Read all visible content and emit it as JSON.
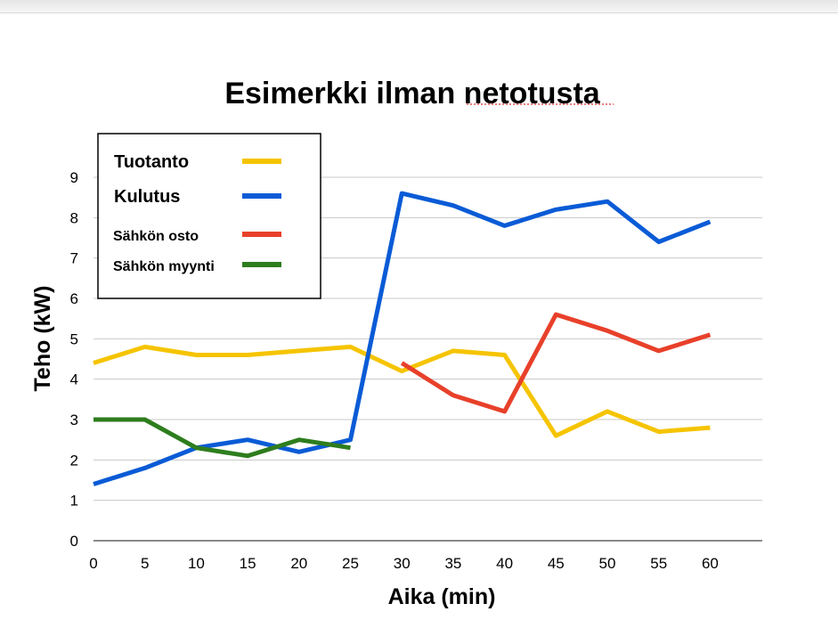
{
  "chart_data": {
    "type": "line",
    "title": "Esimerkki ilman netotusta",
    "xlabel": "Aika (min)",
    "ylabel": "Teho (kW)",
    "x": [
      0,
      5,
      10,
      15,
      20,
      25,
      30,
      35,
      40,
      45,
      50,
      55,
      60
    ],
    "xlim": [
      0,
      65
    ],
    "ylim": [
      0,
      9
    ],
    "xticks": [
      "0",
      "5",
      "10",
      "15",
      "20",
      "25",
      "30",
      "35",
      "40",
      "45",
      "50",
      "55",
      "60"
    ],
    "yticks": [
      "0",
      "1",
      "2",
      "3",
      "4",
      "5",
      "6",
      "7",
      "8",
      "9"
    ],
    "grid": true,
    "legend_position": "top-left",
    "series": [
      {
        "name": "Tuotanto",
        "color": "#f5c400",
        "points": [
          [
            0,
            4.4
          ],
          [
            5,
            4.8
          ],
          [
            10,
            4.6
          ],
          [
            15,
            4.6
          ],
          [
            20,
            4.7
          ],
          [
            25,
            4.8
          ],
          [
            30,
            4.2
          ],
          [
            35,
            4.7
          ],
          [
            40,
            4.6
          ],
          [
            45,
            2.6
          ],
          [
            50,
            3.2
          ],
          [
            55,
            2.7
          ],
          [
            60,
            2.8
          ]
        ]
      },
      {
        "name": "Kulutus",
        "color": "#0a5bd6",
        "points": [
          [
            0,
            1.4
          ],
          [
            5,
            1.8
          ],
          [
            10,
            2.3
          ],
          [
            15,
            2.5
          ],
          [
            20,
            2.2
          ],
          [
            25,
            2.5
          ],
          [
            30,
            8.6
          ],
          [
            35,
            8.3
          ],
          [
            40,
            7.8
          ],
          [
            45,
            8.2
          ],
          [
            50,
            8.4
          ],
          [
            55,
            7.4
          ],
          [
            60,
            7.9
          ]
        ]
      },
      {
        "name": "Sähkön osto",
        "color": "#e8402a",
        "points": [
          [
            30,
            4.4
          ],
          [
            35,
            3.6
          ],
          [
            40,
            3.2
          ],
          [
            45,
            5.6
          ],
          [
            50,
            5.2
          ],
          [
            55,
            4.7
          ],
          [
            60,
            5.1
          ]
        ]
      },
      {
        "name": "Sähkön myynti",
        "color": "#2e7d1e",
        "points": [
          [
            0,
            3.0
          ],
          [
            5,
            3.0
          ],
          [
            10,
            2.3
          ],
          [
            15,
            2.1
          ],
          [
            20,
            2.5
          ],
          [
            25,
            2.3
          ]
        ]
      }
    ]
  }
}
